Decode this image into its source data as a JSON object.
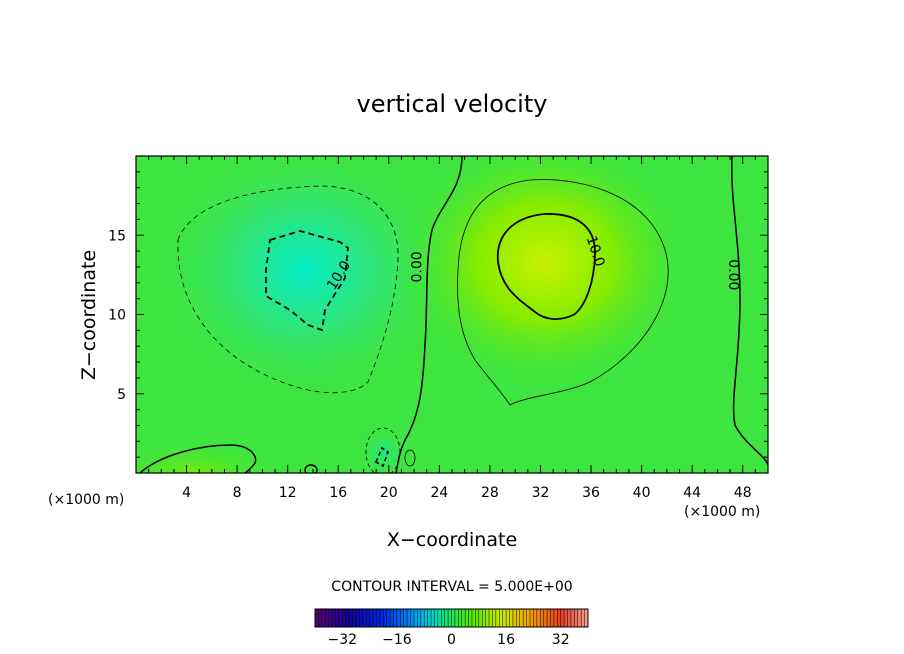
{
  "chart_data": {
    "type": "heatmap",
    "title": "vertical velocity",
    "xlabel": "X−coordinate",
    "ylabel": "Z−coordinate",
    "x_unit_left": "(×1000 m)",
    "x_unit_right": "(×1000 m)",
    "xlim": [
      0,
      50
    ],
    "ylim": [
      0,
      20
    ],
    "xticks": [
      4,
      8,
      12,
      16,
      20,
      24,
      28,
      32,
      36,
      40,
      44,
      48
    ],
    "yticks": [
      5,
      10,
      15
    ],
    "contour_interval_text": "CONTOUR INTERVAL = 5.000E+00",
    "colorbar": {
      "min": -40,
      "max": 40,
      "ticks": [
        -32,
        -16,
        0,
        16,
        32
      ],
      "tick_labels": [
        "−32",
        "−16",
        "0",
        "16",
        "32"
      ]
    },
    "features": [
      {
        "kind": "downdraft",
        "center_x": 13.3,
        "center_z": 13.0,
        "peak": -12
      },
      {
        "kind": "updraft",
        "center_x": 32.5,
        "center_z": 14.0,
        "peak": 13
      },
      {
        "kind": "weak-updraft",
        "center_x": 8.0,
        "center_z": 1.0,
        "peak": 3
      },
      {
        "kind": "weak-downdraft",
        "center_x": 19.5,
        "center_z": 1.5,
        "peak": -6
      }
    ],
    "contour_labels": [
      {
        "text": "10.0",
        "x": 16.0,
        "z": 12.5,
        "angle": -58
      },
      {
        "text": "0.00",
        "x": 22.2,
        "z": 13.0,
        "angle": -90
      },
      {
        "text": "10.0",
        "x": 36.4,
        "z": 14.0,
        "angle": 72
      },
      {
        "text": "0.00",
        "x": 47.3,
        "z": 12.5,
        "angle": 90
      }
    ]
  }
}
